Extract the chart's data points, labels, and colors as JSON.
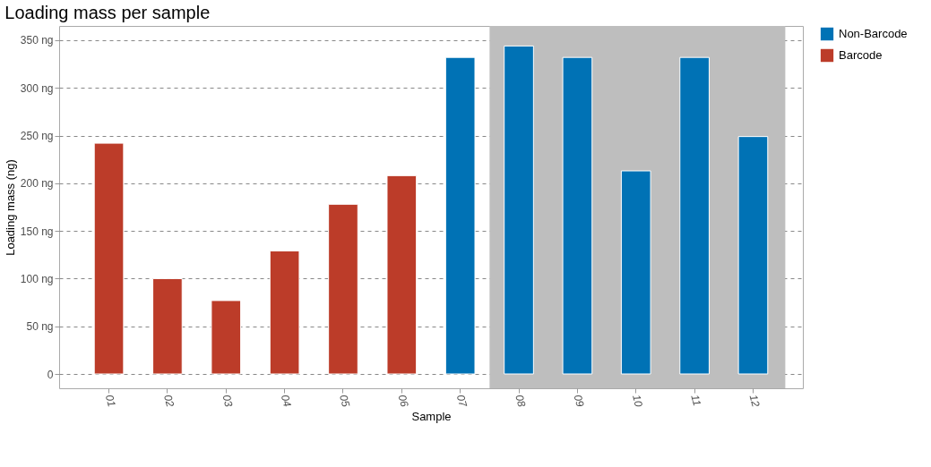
{
  "chart_data": {
    "type": "bar",
    "title": "Loading mass per sample",
    "xlabel": "Sample",
    "ylabel": "Loading mass (ng)",
    "categories": [
      "01",
      "02",
      "03",
      "04",
      "05",
      "06",
      "07",
      "08",
      "09",
      "10",
      "11",
      "12"
    ],
    "series": [
      {
        "name": "Non-Barcode",
        "color": "#0072b5",
        "values": [
          null,
          null,
          null,
          null,
          null,
          null,
          332,
          344,
          332,
          213,
          332,
          249
        ]
      },
      {
        "name": "Barcode",
        "color": "#bc3c29",
        "values": [
          242,
          100,
          77,
          129,
          178,
          208,
          null,
          null,
          null,
          null,
          null,
          null
        ]
      }
    ],
    "ylim": [
      -15,
      365
    ],
    "yticks": [
      0,
      {
        "value": 50,
        "label": "50 ng"
      },
      {
        "value": 100,
        "label": "100 ng"
      },
      {
        "value": 150,
        "label": "150 ng"
      },
      {
        "value": 200,
        "label": "200 ng"
      },
      {
        "value": 250,
        "label": "250 ng"
      },
      {
        "value": 300,
        "label": "300 ng"
      },
      {
        "value": 350,
        "label": "350 ng"
      }
    ],
    "bands": [
      {
        "axis": "x",
        "from": "08",
        "to": "12",
        "color": "#bebebe"
      }
    ],
    "grid": "y",
    "legend": "right"
  }
}
